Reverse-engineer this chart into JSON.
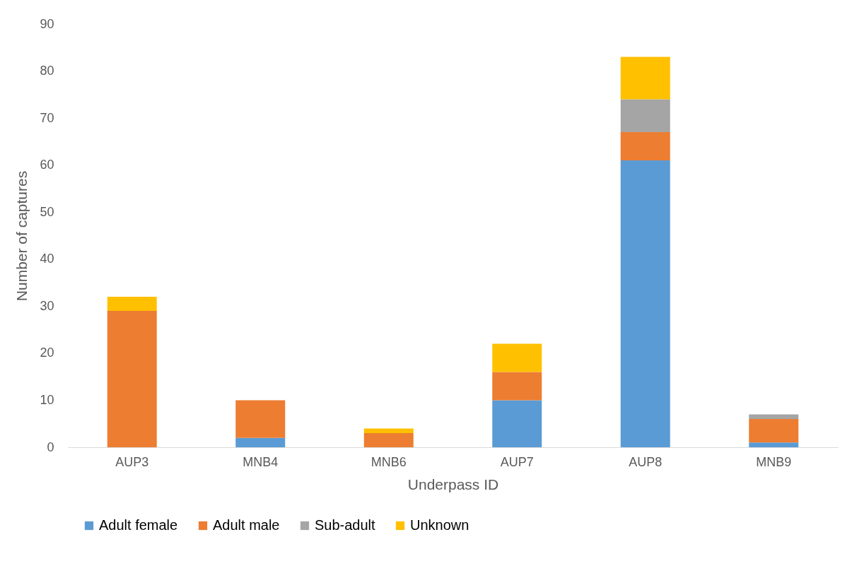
{
  "chart_data": {
    "type": "bar",
    "stacked": true,
    "xlabel": "Underpass ID",
    "ylabel": "Number of captures",
    "categories": [
      "AUP3",
      "MNB4",
      "MNB6",
      "AUP7",
      "AUP8",
      "MNB9"
    ],
    "series": [
      {
        "name": "Adult female",
        "color": "#5b9bd5",
        "values": [
          0,
          2,
          0,
          10,
          61,
          1
        ]
      },
      {
        "name": "Adult male",
        "color": "#ed7d31",
        "values": [
          29,
          8,
          3,
          6,
          6,
          5
        ]
      },
      {
        "name": "Sub-adult",
        "color": "#a5a5a5",
        "values": [
          0,
          0,
          0,
          0,
          7,
          1
        ]
      },
      {
        "name": "Unknown",
        "color": "#ffc000",
        "values": [
          3,
          0,
          1,
          6,
          9,
          0
        ]
      }
    ],
    "ylim": [
      0,
      90
    ],
    "yticks": [
      0,
      10,
      20,
      30,
      40,
      50,
      60,
      70,
      80,
      90
    ],
    "grid": false,
    "legend": "bottom"
  }
}
